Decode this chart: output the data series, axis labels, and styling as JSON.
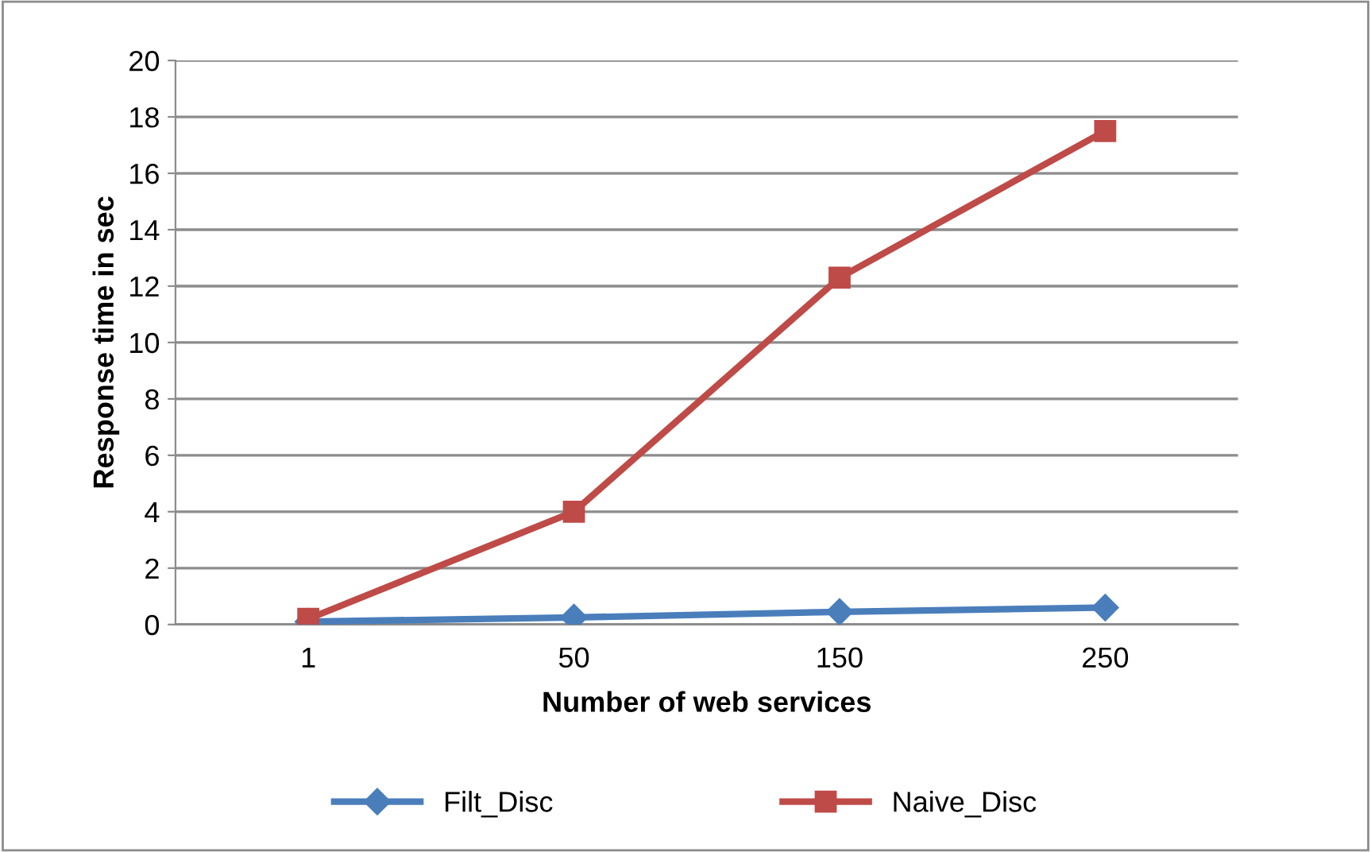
{
  "chart_data": {
    "type": "line",
    "xlabel": "Number of web services",
    "ylabel": "Response time in sec",
    "categories": [
      "1",
      "50",
      "150",
      "250"
    ],
    "series": [
      {
        "name": "Filt_Disc",
        "color": "#4a7ebb",
        "marker": "diamond",
        "values": [
          0.1,
          0.25,
          0.45,
          0.6
        ]
      },
      {
        "name": "Naive_Disc",
        "color": "#be4b48",
        "marker": "square",
        "values": [
          0.2,
          4.0,
          12.3,
          17.5
        ]
      }
    ],
    "ylim": [
      0,
      20
    ],
    "yticks": [
      0,
      2,
      4,
      6,
      8,
      10,
      12,
      14,
      16,
      18,
      20
    ],
    "grid": "y",
    "legend": "bottom"
  }
}
